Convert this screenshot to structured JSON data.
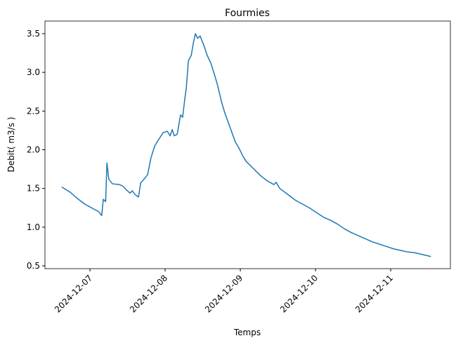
{
  "chart_data": {
    "type": "line",
    "title": "Fourmies",
    "x_label": "Temps",
    "y_label": "Debit( m3/s )",
    "x": [
      "2024-12-06 15:00",
      "2024-12-06 17:45",
      "2024-12-06 20:00",
      "2024-12-06 22:15",
      "2024-12-07 00:30",
      "2024-12-07 02:45",
      "2024-12-07 03:45",
      "2024-12-07 04:15",
      "2024-12-07 05:00",
      "2024-12-07 05:25",
      "2024-12-07 06:00",
      "2024-12-07 07:10",
      "2024-12-07 09:25",
      "2024-12-07 10:30",
      "2024-12-07 11:40",
      "2024-12-07 12:47",
      "2024-12-07 13:30",
      "2024-12-07 14:25",
      "2024-12-07 15:30",
      "2024-12-07 16:10",
      "2024-12-07 17:15",
      "2024-12-07 18:25",
      "2024-12-07 19:30",
      "2024-12-07 20:40",
      "2024-12-07 21:45",
      "2024-12-07 23:20",
      "2024-12-08 00:40",
      "2024-12-08 01:35",
      "2024-12-08 02:15",
      "2024-12-08 02:55",
      "2024-12-08 03:50",
      "2024-12-08 04:55",
      "2024-12-08 05:35",
      "2024-12-08 06:15",
      "2024-12-08 06:45",
      "2024-12-08 07:25",
      "2024-12-08 08:20",
      "2024-12-08 09:00",
      "2024-12-08 09:40",
      "2024-12-08 10:20",
      "2024-12-08 11:10",
      "2024-12-08 12:20",
      "2024-12-08 13:25",
      "2024-12-08 14:35",
      "2024-12-08 15:40",
      "2024-12-08 16:50",
      "2024-12-08 17:55",
      "2024-12-08 19:05",
      "2024-12-08 20:10",
      "2024-12-08 21:20",
      "2024-12-08 22:25",
      "2024-12-08 23:35",
      "2024-12-09 00:40",
      "2024-12-09 01:50",
      "2024-12-09 04:05",
      "2024-12-09 06:20",
      "2024-12-09 08:30",
      "2024-12-09 10:45",
      "2024-12-09 11:25",
      "2024-12-09 12:35",
      "2024-12-09 15:15",
      "2024-12-09 17:30",
      "2024-12-09 19:45",
      "2024-12-09 22:00",
      "2024-12-10 00:15",
      "2024-12-10 02:30",
      "2024-12-10 04:45",
      "2024-12-10 07:00",
      "2024-12-10 09:10",
      "2024-12-10 11:25",
      "2024-12-10 13:40",
      "2024-12-10 15:55",
      "2024-12-10 18:10",
      "2024-12-10 20:25",
      "2024-12-10 22:40",
      "2024-12-11 00:55",
      "2024-12-11 03:10",
      "2024-12-11 05:20",
      "2024-12-11 07:35",
      "2024-12-11 09:50",
      "2024-12-11 12:50"
    ],
    "series": [
      {
        "color": "#1f77b4",
        "values": [
          1.52,
          1.45,
          1.37,
          1.3,
          1.25,
          1.2,
          1.15,
          1.36,
          1.33,
          1.83,
          1.62,
          1.56,
          1.55,
          1.53,
          1.48,
          1.44,
          1.47,
          1.42,
          1.39,
          1.57,
          1.62,
          1.68,
          1.9,
          2.05,
          2.12,
          2.22,
          2.24,
          2.18,
          2.26,
          2.18,
          2.2,
          2.45,
          2.42,
          2.65,
          2.8,
          3.15,
          3.22,
          3.38,
          3.5,
          3.44,
          3.47,
          3.35,
          3.22,
          3.12,
          2.98,
          2.82,
          2.63,
          2.47,
          2.35,
          2.22,
          2.1,
          2.02,
          1.93,
          1.85,
          1.76,
          1.67,
          1.6,
          1.55,
          1.58,
          1.5,
          1.42,
          1.35,
          1.3,
          1.25,
          1.19,
          1.13,
          1.09,
          1.04,
          0.98,
          0.93,
          0.89,
          0.85,
          0.81,
          0.78,
          0.75,
          0.72,
          0.7,
          0.68,
          0.67,
          0.65,
          0.62
        ]
      }
    ],
    "xlim": [
      "2024-12-06 09:38",
      "2024-12-11 19:03"
    ],
    "xticks": [
      "2024-12-07",
      "2024-12-08",
      "2024-12-09",
      "2024-12-10",
      "2024-12-11"
    ],
    "ylim": [
      0.464,
      3.663
    ],
    "yticks": [
      0.5,
      {
        "value": 1,
        "label": "1.0"
      },
      1.5,
      {
        "value": 2,
        "label": "2.0"
      },
      2.5,
      {
        "value": 3,
        "label": "3.0"
      },
      3.5
    ],
    "grid": false
  }
}
